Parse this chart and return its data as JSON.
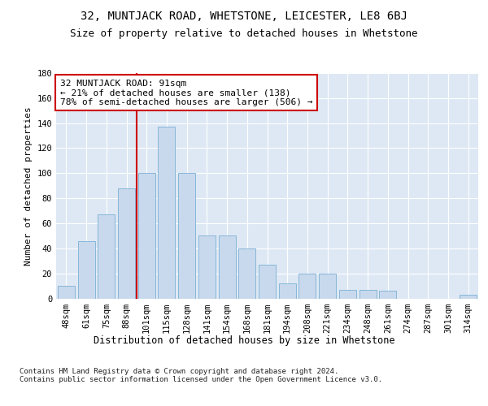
{
  "title1": "32, MUNTJACK ROAD, WHETSTONE, LEICESTER, LE8 6BJ",
  "title2": "Size of property relative to detached houses in Whetstone",
  "xlabel": "Distribution of detached houses by size in Whetstone",
  "ylabel": "Number of detached properties",
  "categories": [
    "48sqm",
    "61sqm",
    "75sqm",
    "88sqm",
    "101sqm",
    "115sqm",
    "128sqm",
    "141sqm",
    "154sqm",
    "168sqm",
    "181sqm",
    "194sqm",
    "208sqm",
    "221sqm",
    "234sqm",
    "248sqm",
    "261sqm",
    "274sqm",
    "287sqm",
    "301sqm",
    "314sqm"
  ],
  "values": [
    10,
    46,
    67,
    88,
    100,
    137,
    100,
    50,
    50,
    40,
    27,
    12,
    20,
    20,
    7,
    7,
    6,
    0,
    0,
    0,
    3
  ],
  "bar_color": "#c9d9ed",
  "bar_edge_color": "#7aafd4",
  "vline_color": "#cc0000",
  "vline_x": 3.5,
  "annotation_text": "32 MUNTJACK ROAD: 91sqm\n← 21% of detached houses are smaller (138)\n78% of semi-detached houses are larger (506) →",
  "annotation_box_facecolor": "#ffffff",
  "annotation_box_edgecolor": "#cc0000",
  "ylim": [
    0,
    180
  ],
  "yticks": [
    0,
    20,
    40,
    60,
    80,
    100,
    120,
    140,
    160,
    180
  ],
  "background_color": "#dde8f4",
  "grid_color": "#ffffff",
  "footer_text": "Contains HM Land Registry data © Crown copyright and database right 2024.\nContains public sector information licensed under the Open Government Licence v3.0.",
  "title1_fontsize": 10,
  "title2_fontsize": 9,
  "xlabel_fontsize": 8.5,
  "ylabel_fontsize": 8,
  "tick_fontsize": 7.5,
  "annotation_fontsize": 8,
  "footer_fontsize": 6.5
}
